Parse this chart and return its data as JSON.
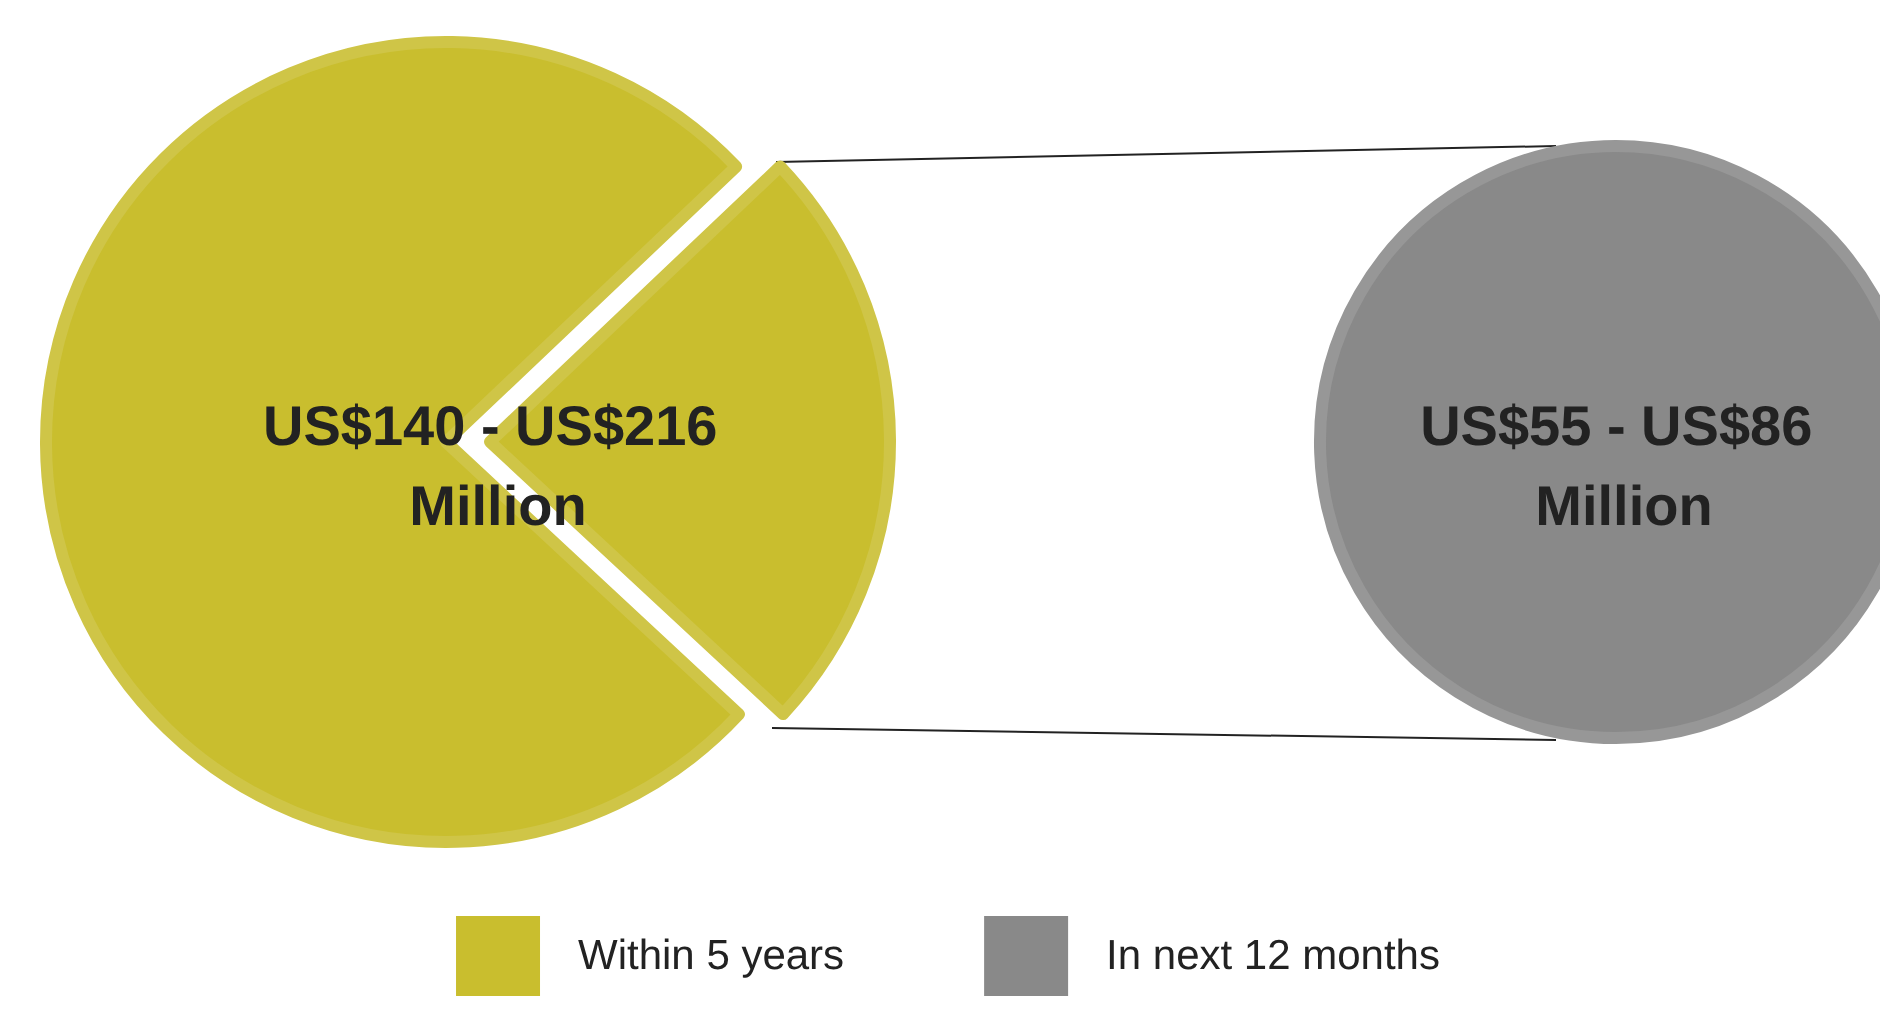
{
  "chart_data": {
    "type": "pie",
    "legend": "bottom",
    "series": [
      {
        "name": "Within 5 years",
        "color": "#c9be2e",
        "values": [
          24,
          76
        ]
      },
      {
        "name": "In next 12 months",
        "color": "#898989",
        "values": [
          100
        ]
      }
    ],
    "annotations": [
      "US$140 - US$216 Million",
      "US$55 - US$86 Million"
    ]
  }
}
